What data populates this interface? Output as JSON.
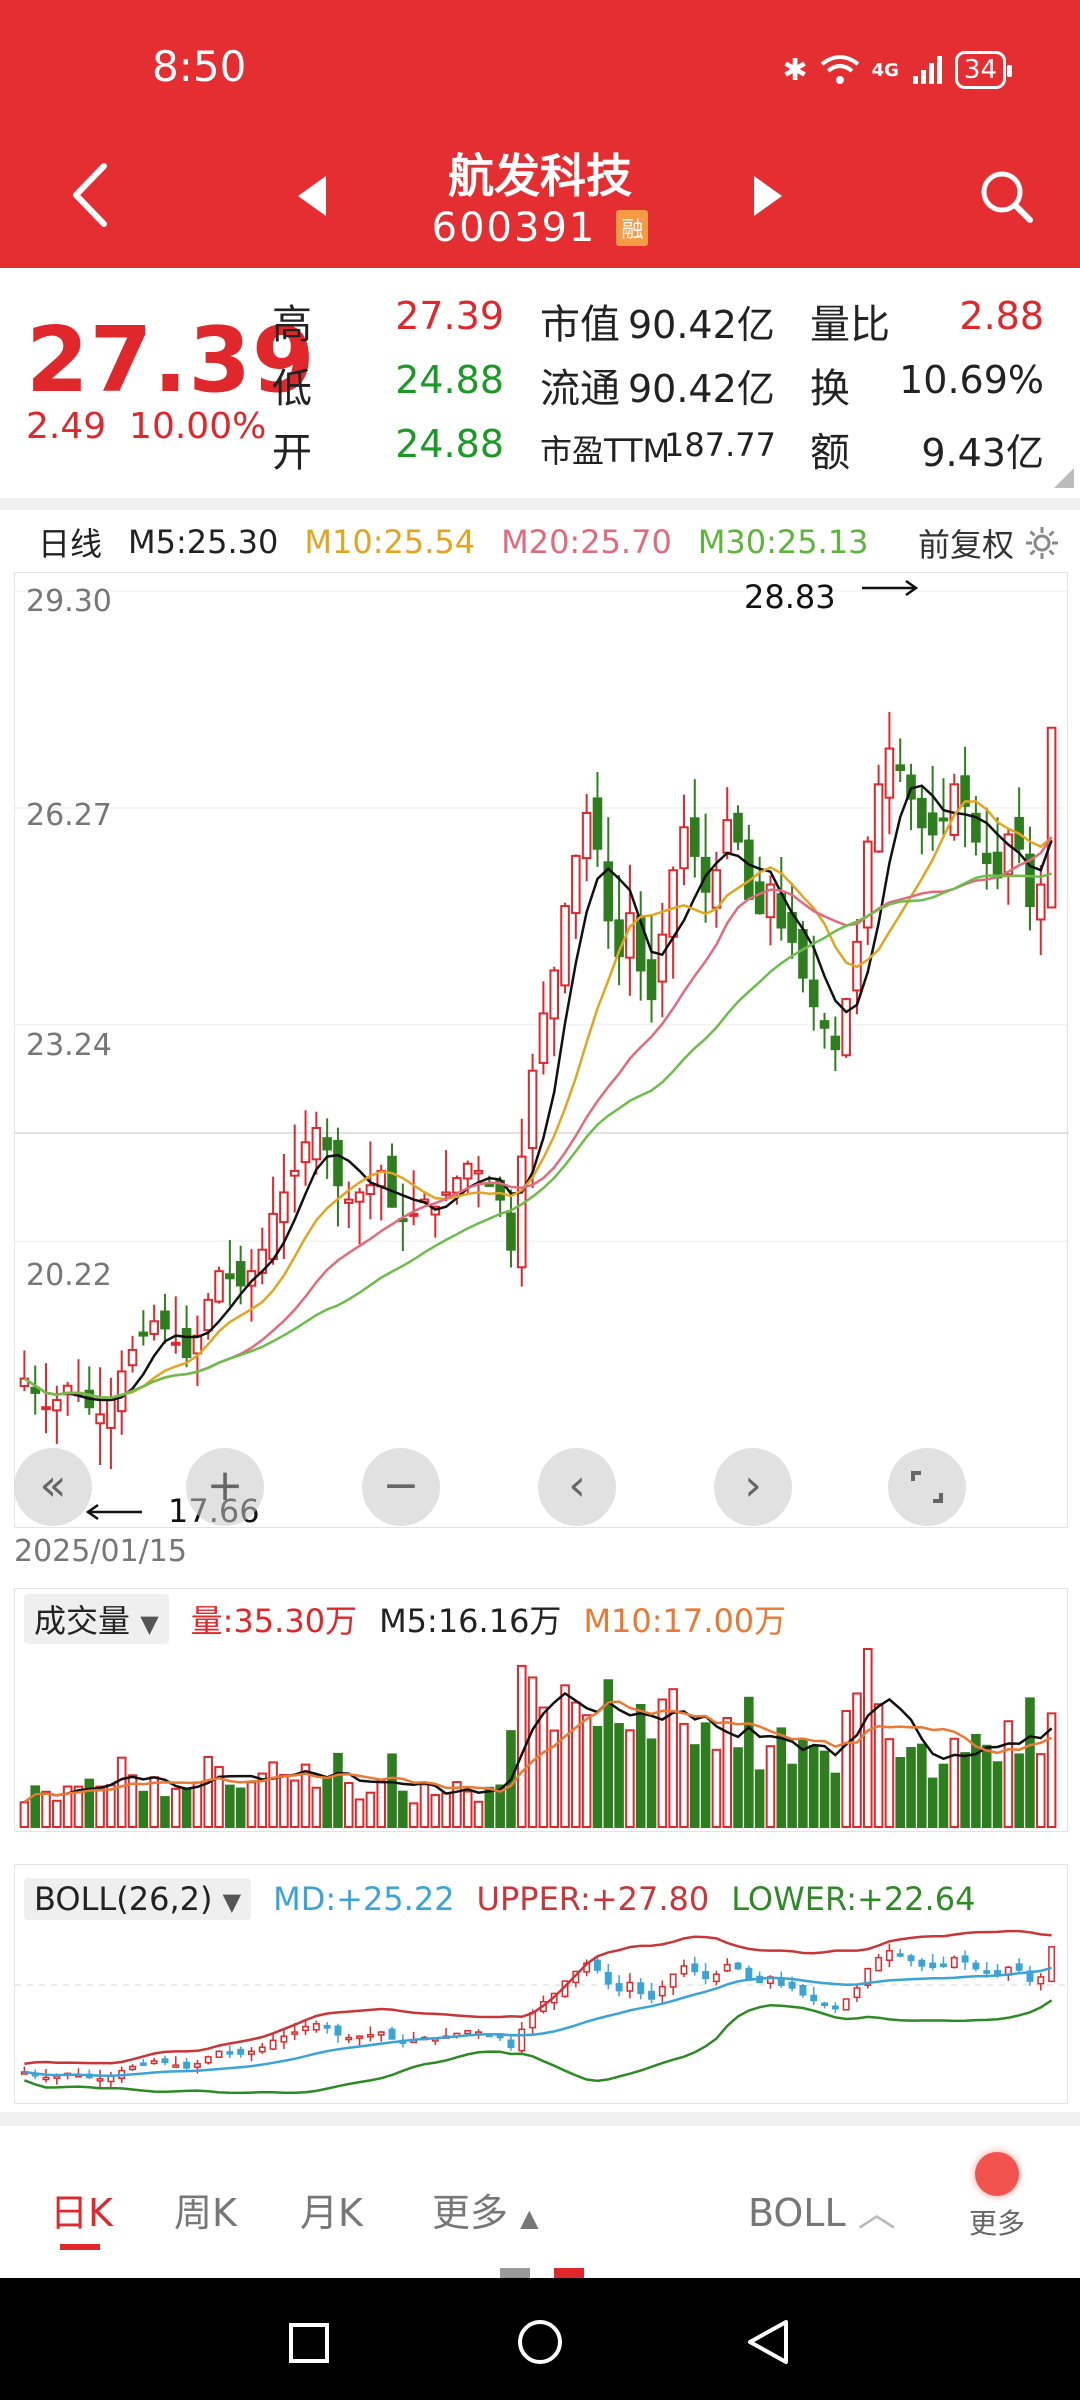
{
  "status": {
    "time": "8:50",
    "network": "4G",
    "battery": "34"
  },
  "header": {
    "title": "航发科技",
    "code": "600391",
    "badge": "融"
  },
  "quote": {
    "price": "27.39",
    "change": "2.49",
    "change_pct": "10.00%",
    "items": [
      {
        "label": "高",
        "value": "27.39",
        "tone": "red"
      },
      {
        "label": "低",
        "value": "24.88",
        "tone": "green"
      },
      {
        "label": "开",
        "value": "24.88",
        "tone": "green"
      },
      {
        "label": "市值",
        "value": "90.42亿",
        "tone": "dark"
      },
      {
        "label": "流通",
        "value": "90.42亿",
        "tone": "dark"
      },
      {
        "label": "市盈TTM",
        "value": "187.77",
        "tone": "dark"
      },
      {
        "label": "量比",
        "value": "2.88",
        "tone": "red"
      },
      {
        "label": "换",
        "value": "10.69%",
        "tone": "dark"
      },
      {
        "label": "额",
        "value": "9.43亿",
        "tone": "dark"
      }
    ]
  },
  "ma": {
    "period": "日线",
    "m5": "M5:25.30",
    "m10": "M10:25.54",
    "m20": "M20:25.70",
    "m30": "M30:25.13",
    "adjust": "前复权"
  },
  "colors": {
    "up": "#e0272b",
    "down": "#2e7d1f",
    "m5": "#111111",
    "m10": "#e2a520",
    "m20": "#e36a7d",
    "m30": "#6cbd4a",
    "header": "#e52e32",
    "boll_md": "#3aa3d8"
  },
  "kchart": {
    "y_ticks": [
      "29.30",
      "26.27",
      "23.24",
      "20.22"
    ],
    "high_label": "28.83",
    "low_label": "17.66",
    "start_date": "2025/01/15"
  },
  "chart_data": {
    "type": "candlestick",
    "ylim": [
      17.4,
      29.3
    ],
    "y_ticks": [
      29.3,
      26.27,
      23.24,
      20.22
    ],
    "annotations": [
      {
        "text": "28.83",
        "kind": "high"
      },
      {
        "text": "17.66",
        "kind": "low"
      }
    ],
    "closes": [
      18.3,
      18.1,
      17.9,
      18.0,
      18.2,
      18.1,
      17.9,
      17.8,
      18.0,
      18.4,
      18.7,
      18.9,
      19.1,
      19.0,
      18.8,
      18.6,
      18.9,
      19.4,
      19.8,
      19.7,
      19.6,
      19.8,
      20.1,
      20.6,
      20.9,
      21.2,
      21.6,
      21.8,
      21.5,
      21.0,
      20.8,
      20.9,
      21.0,
      21.2,
      20.7,
      20.5,
      20.6,
      20.8,
      20.7,
      20.9,
      21.1,
      21.3,
      21.2,
      21.0,
      20.8,
      20.1,
      21.4,
      22.6,
      23.4,
      24.0,
      24.9,
      25.6,
      26.2,
      25.7,
      24.7,
      24.2,
      24.8,
      24.0,
      23.6,
      24.5,
      25.4,
      26.0,
      25.6,
      25.1,
      25.4,
      26.1,
      25.8,
      25.0,
      24.8,
      25.2,
      24.6,
      24.4,
      23.9,
      23.5,
      23.2,
      22.9,
      23.6,
      24.4,
      25.8,
      26.6,
      27.1,
      26.8,
      26.4,
      26.0,
      25.9,
      26.1,
      26.6,
      26.3,
      25.8,
      25.5,
      25.3,
      25.9,
      25.7,
      24.9,
      25.2,
      27.39
    ],
    "series": [
      {
        "name": "M5",
        "value": "25.30"
      },
      {
        "name": "M10",
        "value": "25.54"
      },
      {
        "name": "M20",
        "value": "25.70"
      },
      {
        "name": "M30",
        "value": "25.13"
      }
    ]
  },
  "volume": {
    "selector": "成交量",
    "vol": "量:35.30万",
    "m5": "M5:16.16万",
    "m10": "M10:17.00万"
  },
  "boll": {
    "selector": "BOLL(26,2)",
    "md": "MD:+25.22",
    "upper": "UPPER:+27.80",
    "lower": "LOWER:+22.64"
  },
  "tabs": {
    "day": "日K",
    "week": "周K",
    "month": "月K",
    "more": "更多",
    "indicator": "BOLL",
    "more_button": "更多"
  }
}
